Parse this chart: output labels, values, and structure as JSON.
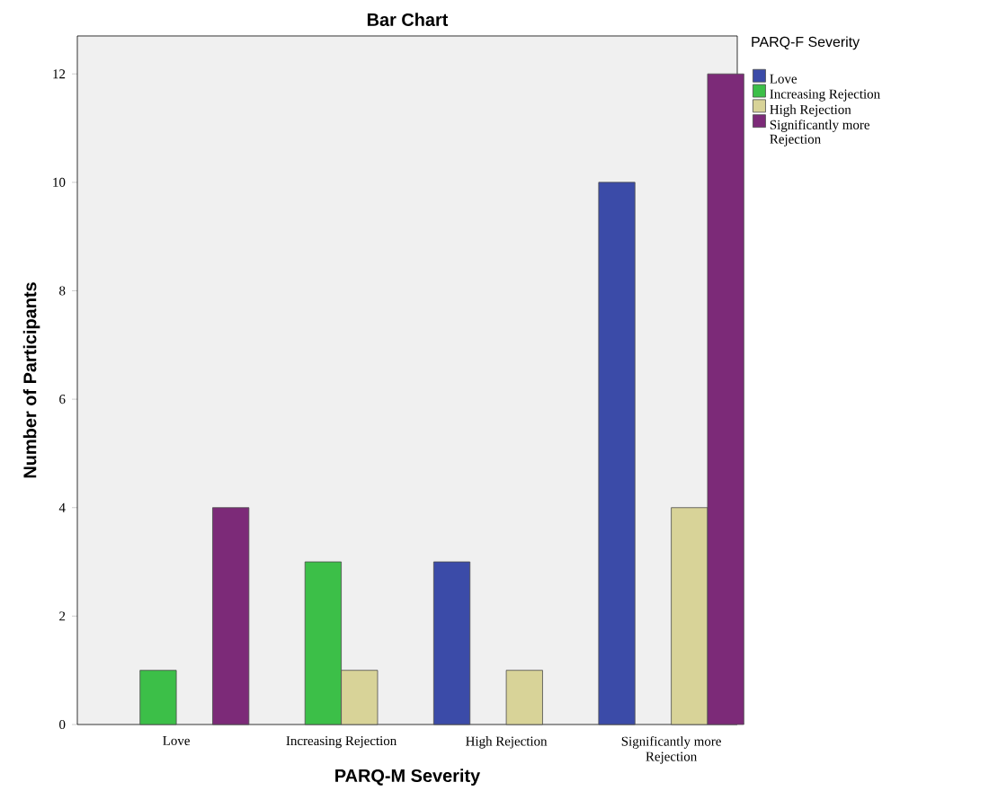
{
  "chart_data": {
    "type": "bar",
    "title": "Bar Chart",
    "xlabel": "PARQ-M Severity",
    "ylabel": "Number of Participants",
    "legend_title": "PARQ-F Severity",
    "categories": [
      "Love",
      "Increasing Rejection",
      "High Rejection",
      "Significantly more Rejection"
    ],
    "series": [
      {
        "name": "Love",
        "color": "#3b4ba8",
        "values": [
          null,
          null,
          3,
          10
        ]
      },
      {
        "name": "Increasing Rejection",
        "color": "#3cbf48",
        "values": [
          1,
          3,
          null,
          null
        ]
      },
      {
        "name": "High Rejection",
        "color": "#d8d398",
        "values": [
          null,
          1,
          1,
          4
        ]
      },
      {
        "name": "Significantly more Rejection",
        "color": "#7c2a78",
        "values": [
          4,
          null,
          null,
          12
        ]
      }
    ],
    "ylim": [
      0,
      12.7
    ],
    "yticks": [
      0,
      2,
      4,
      6,
      8,
      10,
      12
    ],
    "grid": false,
    "legend": "right"
  }
}
